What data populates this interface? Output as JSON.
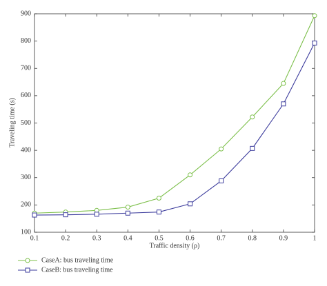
{
  "chart_data": {
    "type": "line",
    "xlabel": "Traffic density (ρ)",
    "ylabel": "Traveling time (s)",
    "x": [
      0.1,
      0.2,
      0.3,
      0.4,
      0.5,
      0.6,
      0.7,
      0.8,
      0.9,
      1
    ],
    "series": [
      {
        "name": "CaseA: bus traveling time",
        "color": "#7cbf4a",
        "marker": "circle",
        "values": [
          170,
          174,
          180,
          192,
          225,
          310,
          405,
          522,
          645,
          893
        ]
      },
      {
        "name": "CaseB: bus traveling time",
        "color": "#3b3b9c",
        "marker": "square",
        "values": [
          163,
          164,
          166,
          170,
          174,
          204,
          288,
          407,
          570,
          793
        ]
      }
    ],
    "xlim": [
      0.1,
      1
    ],
    "xticks": [
      0.1,
      0.2,
      0.3,
      0.4,
      0.5,
      0.6,
      0.7,
      0.8,
      0.9,
      1
    ],
    "ylim": [
      100,
      900
    ],
    "yticks": [
      100,
      200,
      300,
      400,
      500,
      600,
      700,
      800,
      900
    ],
    "legend": "bottom-left"
  }
}
